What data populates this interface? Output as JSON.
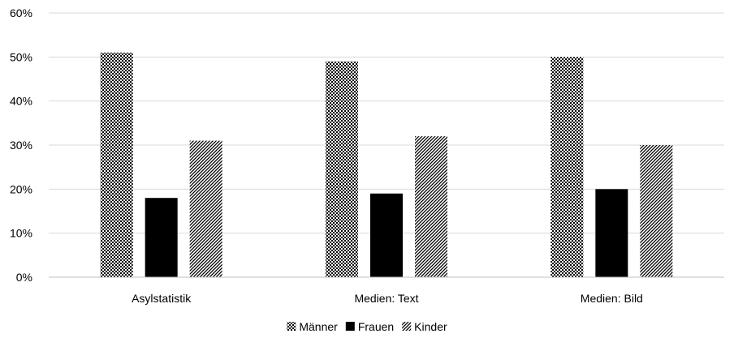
{
  "chart_data": {
    "type": "bar",
    "title": "",
    "xlabel": "",
    "ylabel": "",
    "categories": [
      "Asylstatistik",
      "Medien: Text",
      "Medien: Bild"
    ],
    "series": [
      {
        "name": "Männer",
        "values": [
          51,
          49,
          50
        ],
        "pattern": "crosshatch"
      },
      {
        "name": "Frauen",
        "values": [
          18,
          19,
          20
        ],
        "pattern": "solid"
      },
      {
        "name": "Kinder",
        "values": [
          31,
          32,
          30
        ],
        "pattern": "diagonal"
      }
    ],
    "ylim": [
      0,
      60
    ],
    "yticks": [
      0,
      10,
      20,
      30,
      40,
      50,
      60
    ],
    "ytick_format": "{v}%",
    "grid": true,
    "legend_position": "bottom-center",
    "colors": {
      "bar": "#000000",
      "grid": "#d9d9d9",
      "axis": "#bfbfbf",
      "background": "#ffffff"
    }
  }
}
